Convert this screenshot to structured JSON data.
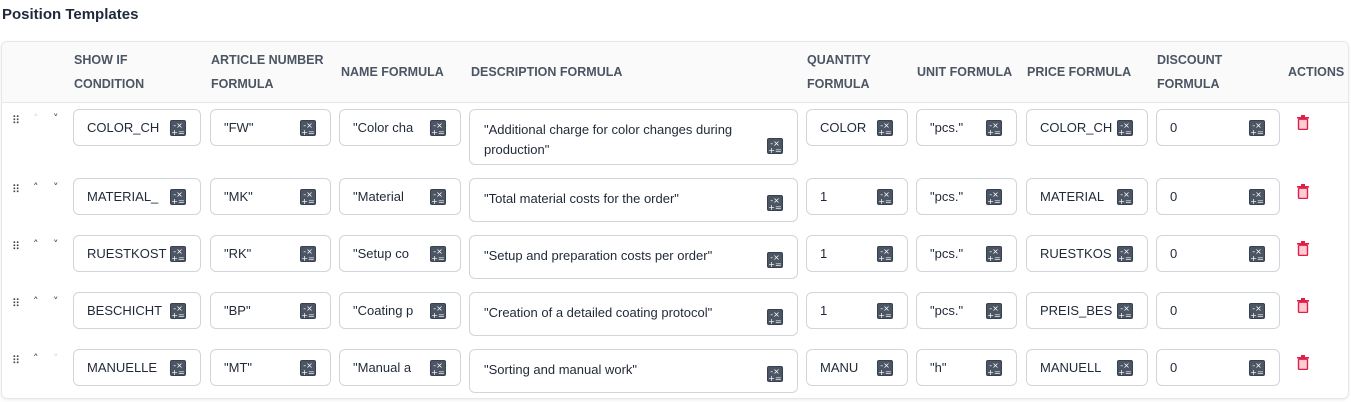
{
  "title": "Position Templates",
  "columns": {
    "show_if": [
      "SHOW IF",
      "CONDITION"
    ],
    "article": [
      "ARTICLE NUMBER",
      "FORMULA"
    ],
    "name": "NAME FORMULA",
    "description": "DESCRIPTION FORMULA",
    "quantity": [
      "QUANTITY",
      "FORMULA"
    ],
    "unit": "UNIT FORMULA",
    "price": "PRICE FORMULA",
    "discount": [
      "DISCOUNT",
      "FORMULA"
    ],
    "actions": "ACTIONS"
  },
  "colors": {
    "delete": "#e11d48",
    "icon": "#4b5563"
  },
  "icons": {
    "drag": "drag-handle-icon",
    "up": "chevron-up-icon",
    "down": "chevron-down-icon",
    "formula": "calculator-icon",
    "delete": "trash-icon"
  },
  "rows": [
    {
      "show_if": "COLOR_CH",
      "article": "\"FW\"",
      "name": "\"Color cha",
      "description": "\"Additional charge for color changes during production\"",
      "quantity": "COLOR",
      "unit": "\"pcs.\"",
      "price": "COLOR_CH",
      "discount": "0",
      "up_enabled": false,
      "down_enabled": true
    },
    {
      "show_if": "MATERIAL_",
      "article": "\"MK\"",
      "name": "\"Material",
      "description": "\"Total material costs for the order\"",
      "quantity": "1",
      "unit": "\"pcs.\"",
      "price": "MATERIAL",
      "discount": "0",
      "up_enabled": true,
      "down_enabled": true
    },
    {
      "show_if": "RUESTKOST",
      "article": "\"RK\"",
      "name": "\"Setup co",
      "description": "\"Setup and preparation costs per order\"",
      "quantity": "1",
      "unit": "\"pcs.\"",
      "price": "RUESTKOS",
      "discount": "0",
      "up_enabled": true,
      "down_enabled": true
    },
    {
      "show_if": "BESCHICHT",
      "article": "\"BP\"",
      "name": "\"Coating p",
      "description": "\"Creation of a detailed coating protocol\"",
      "quantity": "1",
      "unit": "\"pcs.\"",
      "price": "PREIS_BES",
      "discount": "0",
      "up_enabled": true,
      "down_enabled": true
    },
    {
      "show_if": "MANUELLE",
      "article": "\"MT\"",
      "name": "\"Manual a",
      "description": "\"Sorting and manual work\"",
      "quantity": "MANU",
      "unit": "\"h\"",
      "price": "MANUELL",
      "discount": "0",
      "up_enabled": true,
      "down_enabled": false
    }
  ]
}
